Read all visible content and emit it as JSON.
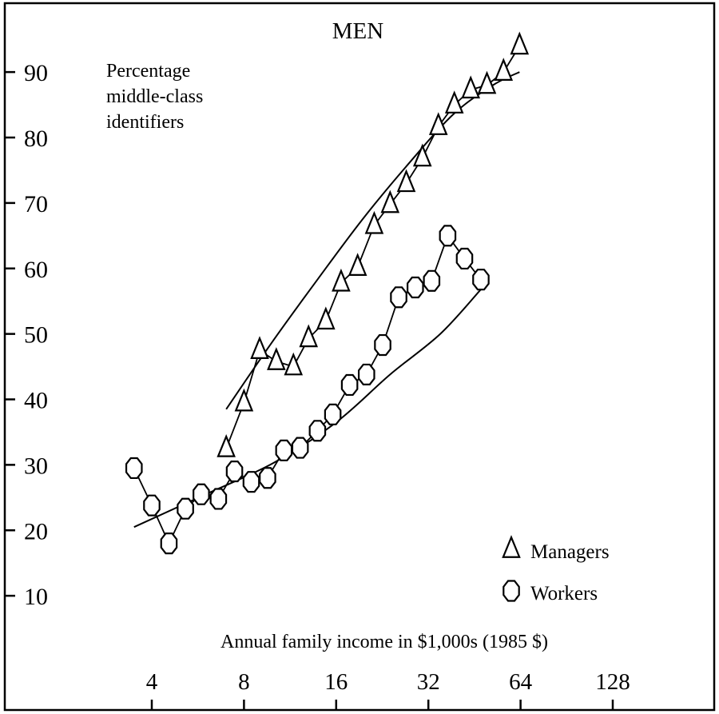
{
  "chart_data": {
    "type": "scatter",
    "title": "MEN",
    "ylabel_lines": [
      "Percentage",
      "middle-class",
      "identifiers"
    ],
    "xlabel": "Annual family income in $1,000s (1985 $)",
    "x_scale": "log2",
    "xlim": [
      3,
      160
    ],
    "ylim": [
      2,
      102
    ],
    "xticks": [
      4,
      8,
      16,
      32,
      64,
      128
    ],
    "xtick_labels": [
      "4",
      "8",
      "16",
      "32",
      "64",
      "128"
    ],
    "yticks": [
      10,
      20,
      30,
      40,
      50,
      60,
      70,
      80,
      90
    ],
    "ytick_labels": [
      "10",
      "20",
      "30",
      "40",
      "50",
      "60",
      "70",
      "80",
      "90"
    ],
    "legend_position": "bottom-right",
    "series": [
      {
        "name": "Managers",
        "marker": "triangle",
        "points": [
          {
            "x": 7.0,
            "y": 32.5
          },
          {
            "x": 8.0,
            "y": 39.5
          },
          {
            "x": 9.0,
            "y": 47.5
          },
          {
            "x": 10.2,
            "y": 45.8
          },
          {
            "x": 11.6,
            "y": 45.0
          },
          {
            "x": 13.0,
            "y": 49.3
          },
          {
            "x": 14.8,
            "y": 52.0
          },
          {
            "x": 16.6,
            "y": 57.8
          },
          {
            "x": 18.8,
            "y": 60.2
          },
          {
            "x": 21.3,
            "y": 66.6
          },
          {
            "x": 24.0,
            "y": 69.8
          },
          {
            "x": 27.1,
            "y": 73.0
          },
          {
            "x": 30.6,
            "y": 76.9
          },
          {
            "x": 34.5,
            "y": 81.7
          },
          {
            "x": 38.9,
            "y": 85.0
          },
          {
            "x": 44.0,
            "y": 87.3
          },
          {
            "x": 49.7,
            "y": 88.0
          },
          {
            "x": 56.3,
            "y": 90.0
          },
          {
            "x": 63.5,
            "y": 94.0
          }
        ]
      },
      {
        "name": "Workers",
        "marker": "octagon",
        "points": [
          {
            "x": 3.5,
            "y": 29.5
          },
          {
            "x": 4.0,
            "y": 23.8
          },
          {
            "x": 4.55,
            "y": 18.0
          },
          {
            "x": 5.15,
            "y": 23.3
          },
          {
            "x": 5.8,
            "y": 25.5
          },
          {
            "x": 6.6,
            "y": 24.8
          },
          {
            "x": 7.45,
            "y": 29.0
          },
          {
            "x": 8.45,
            "y": 27.4
          },
          {
            "x": 9.55,
            "y": 28.0
          },
          {
            "x": 10.8,
            "y": 32.2
          },
          {
            "x": 12.2,
            "y": 32.6
          },
          {
            "x": 13.9,
            "y": 35.2
          },
          {
            "x": 15.6,
            "y": 37.7
          },
          {
            "x": 17.7,
            "y": 42.2
          },
          {
            "x": 20.1,
            "y": 43.8
          },
          {
            "x": 22.7,
            "y": 48.3
          },
          {
            "x": 25.6,
            "y": 55.6
          },
          {
            "x": 29.0,
            "y": 57.1
          },
          {
            "x": 32.8,
            "y": 58.1
          },
          {
            "x": 37.0,
            "y": 65.0
          },
          {
            "x": 42.0,
            "y": 61.5
          },
          {
            "x": 47.5,
            "y": 58.3
          }
        ]
      }
    ],
    "fit_lines": [
      {
        "series": "Managers",
        "points": [
          {
            "x": 7.0,
            "y": 38.5
          },
          {
            "x": 9.8,
            "y": 48.5
          },
          {
            "x": 14.0,
            "y": 58.5
          },
          {
            "x": 19.5,
            "y": 67.5
          },
          {
            "x": 27.0,
            "y": 75.5
          },
          {
            "x": 38.5,
            "y": 83.5
          },
          {
            "x": 52.0,
            "y": 88.0
          },
          {
            "x": 63.5,
            "y": 90.0
          }
        ]
      },
      {
        "series": "Workers",
        "points": [
          {
            "x": 3.5,
            "y": 20.5
          },
          {
            "x": 6.0,
            "y": 25.5
          },
          {
            "x": 10.0,
            "y": 30.3
          },
          {
            "x": 16.0,
            "y": 36.5
          },
          {
            "x": 24.0,
            "y": 43.8
          },
          {
            "x": 35.0,
            "y": 50.0
          },
          {
            "x": 47.5,
            "y": 56.8
          }
        ]
      }
    ]
  },
  "colors": {
    "background": "#ffffff",
    "ink": "#000000",
    "marker_fill": "#ffffff"
  }
}
